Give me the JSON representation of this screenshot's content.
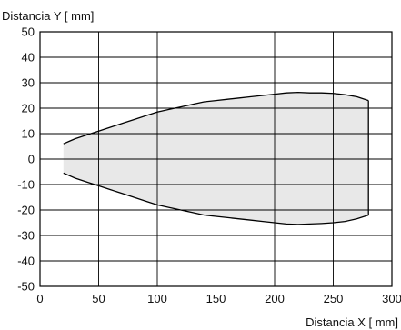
{
  "chart_data": {
    "type": "area",
    "xlabel": "Distancia X [ mm]",
    "ylabel": "Distancia Y [ mm]",
    "xlim": [
      0,
      300
    ],
    "ylim": [
      -50,
      50
    ],
    "xticks": [
      0,
      50,
      100,
      150,
      200,
      250,
      300
    ],
    "yticks": [
      50,
      40,
      30,
      20,
      10,
      0,
      -10,
      -20,
      -30,
      -40,
      -50
    ],
    "grid": true,
    "fill_color": "#e8e8e8",
    "line_color": "#000000",
    "series": [
      {
        "upper": {
          "x": [
            20,
            25,
            30,
            40,
            50,
            60,
            70,
            80,
            90,
            100,
            110,
            120,
            130,
            140,
            150,
            160,
            170,
            180,
            190,
            200,
            210,
            220,
            230,
            240,
            250,
            260,
            270,
            280
          ],
          "y": [
            6,
            7,
            8,
            9.5,
            11,
            12.5,
            14,
            15.5,
            17,
            18.5,
            19.5,
            20.5,
            21.5,
            22.5,
            23,
            23.5,
            24,
            24.5,
            25,
            25.5,
            26,
            26.2,
            26,
            26,
            25.8,
            25.3,
            24.5,
            23
          ]
        },
        "lower": {
          "x": [
            20,
            25,
            30,
            40,
            50,
            60,
            70,
            80,
            90,
            100,
            110,
            120,
            130,
            140,
            150,
            160,
            170,
            180,
            190,
            200,
            210,
            220,
            230,
            240,
            250,
            260,
            270,
            280
          ],
          "y": [
            -5.5,
            -6.5,
            -7.5,
            -9,
            -10.5,
            -12,
            -13.5,
            -15,
            -16.5,
            -18,
            -19,
            -20,
            -21,
            -22,
            -22.5,
            -23,
            -23.5,
            -24,
            -24.5,
            -25,
            -25.5,
            -25.7,
            -25.5,
            -25.3,
            -25,
            -24.5,
            -23.5,
            -22
          ]
        }
      }
    ]
  }
}
